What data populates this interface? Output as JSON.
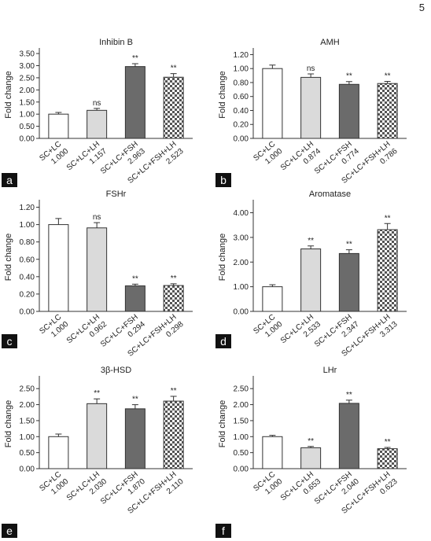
{
  "page_number": "5",
  "chart_data": [
    {
      "type": "bar",
      "panel": "a",
      "title": "Inhibin B",
      "ylabel": "Fold change",
      "categories": [
        "SC+LC",
        "SC+LC+LH",
        "SC+LC+FSH",
        "SC+LC+FSH+LH"
      ],
      "values": [
        1.0,
        1.157,
        2.963,
        2.523
      ],
      "value_labels": [
        "1.000",
        "1.157",
        "2.963",
        "2.523"
      ],
      "errors": [
        0.07,
        0.08,
        0.12,
        0.15
      ],
      "annotations": [
        null,
        "ns",
        "**",
        "**"
      ],
      "colors": [
        "#ffffff",
        "#dadada",
        "#6b6b6b",
        "#555555"
      ],
      "checkered": [
        false,
        false,
        false,
        true
      ],
      "ylim": [
        0,
        3.6
      ],
      "yticks": [
        {
          "value": 0,
          "label": "0.00"
        },
        {
          "value": 0.5,
          "label": "0.50"
        },
        {
          "value": 1,
          "label": "1.00"
        },
        {
          "value": 1.5,
          "label": "1.50"
        },
        {
          "value": 2,
          "label": "2.00"
        },
        {
          "value": 2.5,
          "label": "2.50"
        },
        {
          "value": 3,
          "label": "3.00"
        },
        {
          "value": 3.5,
          "label": "3.50"
        }
      ]
    },
    {
      "type": "bar",
      "panel": "b",
      "title": "AMH",
      "ylabel": "Fold change",
      "categories": [
        "SC+LC",
        "SC+LC+LH",
        "SC+LC+FSH",
        "SC+LC+FSH+LH"
      ],
      "values": [
        1.0,
        0.874,
        0.774,
        0.786
      ],
      "value_labels": [
        "1.000",
        "0.874",
        "0.774",
        "0.786"
      ],
      "errors": [
        0.05,
        0.05,
        0.04,
        0.03
      ],
      "annotations": [
        null,
        "ns",
        "**",
        "**"
      ],
      "colors": [
        "#ffffff",
        "#dadada",
        "#6b6b6b",
        "#555555"
      ],
      "checkered": [
        false,
        false,
        false,
        true
      ],
      "ylim": [
        0,
        1.25
      ],
      "yticks": [
        {
          "value": 0,
          "label": "0.00"
        },
        {
          "value": 0.2,
          "label": "0.20"
        },
        {
          "value": 0.4,
          "label": "0.40"
        },
        {
          "value": 0.6,
          "label": "0.60"
        },
        {
          "value": 0.8,
          "label": "0.80"
        },
        {
          "value": 1,
          "label": "1.00"
        },
        {
          "value": 1.2,
          "label": "1.20"
        }
      ]
    },
    {
      "type": "bar",
      "panel": "c",
      "title": "FSHr",
      "ylabel": "Fold change",
      "categories": [
        "SC+LC",
        "SC+LC+LH",
        "SC+LC+FSH",
        "SC+LC+FSH+LH"
      ],
      "values": [
        1.0,
        0.962,
        0.294,
        0.298
      ],
      "value_labels": [
        "1.000",
        "0.962",
        "0.294",
        "0.298"
      ],
      "errors": [
        0.07,
        0.06,
        0.02,
        0.02
      ],
      "annotations": [
        null,
        "ns",
        "**",
        "**"
      ],
      "colors": [
        "#ffffff",
        "#dadada",
        "#6b6b6b",
        "#555555"
      ],
      "checkered": [
        false,
        false,
        false,
        true
      ],
      "ylim": [
        0,
        1.25
      ],
      "yticks": [
        {
          "value": 0,
          "label": "0.00"
        },
        {
          "value": 0.2,
          "label": "0.20"
        },
        {
          "value": 0.4,
          "label": "0.40"
        },
        {
          "value": 0.6,
          "label": "0.60"
        },
        {
          "value": 0.8,
          "label": "0.80"
        },
        {
          "value": 1,
          "label": "1.00"
        },
        {
          "value": 1.2,
          "label": "1.20"
        }
      ]
    },
    {
      "type": "bar",
      "panel": "d",
      "title": "Aromatase",
      "ylabel": "Fold change",
      "categories": [
        "SC+LC",
        "SC+LC+LH",
        "SC+LC+FSH",
        "SC+LC+FSH+LH"
      ],
      "values": [
        1.0,
        2.533,
        2.347,
        3.313
      ],
      "value_labels": [
        "1.000",
        "2.533",
        "2.347",
        "3.313"
      ],
      "errors": [
        0.08,
        0.12,
        0.15,
        0.25
      ],
      "annotations": [
        null,
        "**",
        "**",
        "**"
      ],
      "colors": [
        "#ffffff",
        "#dadada",
        "#6b6b6b",
        "#555555"
      ],
      "checkered": [
        false,
        false,
        false,
        true
      ],
      "ylim": [
        0,
        4.4
      ],
      "yticks": [
        {
          "value": 0,
          "label": "0.00"
        },
        {
          "value": 1,
          "label": "1.00"
        },
        {
          "value": 2,
          "label": "2.00"
        },
        {
          "value": 3,
          "label": "3.00"
        },
        {
          "value": 4,
          "label": "4.00"
        }
      ]
    },
    {
      "type": "bar",
      "panel": "e",
      "title": "3β-HSD",
      "ylabel": "Fold change",
      "categories": [
        "SC+LC",
        "SC+LC+LH",
        "SC+LC+FSH",
        "SC+LC+FSH+LH"
      ],
      "values": [
        1.0,
        2.03,
        1.87,
        2.11
      ],
      "value_labels": [
        "1.000",
        "2.030",
        "1.870",
        "2.110"
      ],
      "errors": [
        0.08,
        0.15,
        0.13,
        0.15
      ],
      "annotations": [
        null,
        "**",
        "**",
        "**"
      ],
      "colors": [
        "#ffffff",
        "#dadada",
        "#6b6b6b",
        "#555555"
      ],
      "checkered": [
        false,
        false,
        false,
        true
      ],
      "ylim": [
        0,
        2.8
      ],
      "yticks": [
        {
          "value": 0,
          "label": "0.00"
        },
        {
          "value": 0.5,
          "label": "0.50"
        },
        {
          "value": 1,
          "label": "1.00"
        },
        {
          "value": 1.5,
          "label": "1.50"
        },
        {
          "value": 2,
          "label": "2.00"
        },
        {
          "value": 2.5,
          "label": "2.50"
        }
      ]
    },
    {
      "type": "bar",
      "panel": "f",
      "title": "LHr",
      "ylabel": "Fold change",
      "categories": [
        "SC+LC",
        "SC+LC+LH",
        "SC+LC+FSH",
        "SC+LC+FSH+LH"
      ],
      "values": [
        1.0,
        0.653,
        2.04,
        0.623
      ],
      "value_labels": [
        "1.000",
        "0.653",
        "2.040",
        "0.623"
      ],
      "errors": [
        0.04,
        0.04,
        0.1,
        0.04
      ],
      "annotations": [
        null,
        "**",
        "**",
        "**"
      ],
      "colors": [
        "#ffffff",
        "#dadada",
        "#6b6b6b",
        "#555555"
      ],
      "checkered": [
        false,
        false,
        false,
        true
      ],
      "ylim": [
        0,
        2.8
      ],
      "yticks": [
        {
          "value": 0,
          "label": "0.00"
        },
        {
          "value": 0.5,
          "label": "0.50"
        },
        {
          "value": 1,
          "label": "1.00"
        },
        {
          "value": 1.5,
          "label": "1.50"
        },
        {
          "value": 2,
          "label": "2.00"
        },
        {
          "value": 2.5,
          "label": "2.50"
        }
      ]
    }
  ]
}
